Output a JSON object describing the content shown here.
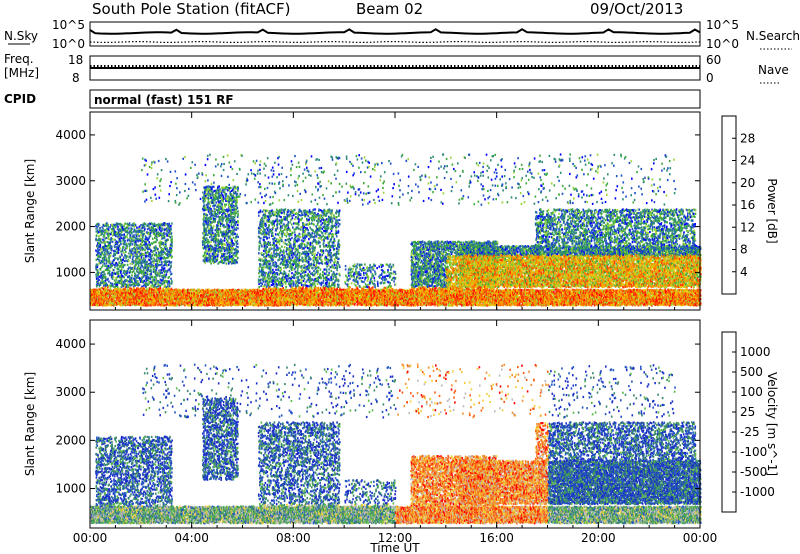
{
  "header": {
    "station": "South Pole Station (fitACF)",
    "beam": "Beam 02",
    "date": "09/Oct/2013"
  },
  "noise_panel": {
    "left_label": "N.Sky",
    "left_ticks": [
      "10^5",
      "10^0"
    ],
    "right_label": "N.Search",
    "right_ticks": [
      "10^5",
      "10^0"
    ]
  },
  "freq_panel": {
    "left_label_1": "Freq.",
    "left_label_2": "[MHz]",
    "left_ticks": [
      "18",
      "8"
    ],
    "right_label": "Nave",
    "right_ticks": [
      "60",
      "0"
    ]
  },
  "cpid_panel": {
    "label": "CPID",
    "mode_text": "normal (fast) 151 RF"
  },
  "chart_data": [
    {
      "type": "heatmap",
      "name": "power",
      "xlabel": "Time UT",
      "ylabel": "Slant Range [km]",
      "xlim": [
        0,
        24
      ],
      "ylim": [
        180,
        4500
      ],
      "yticks": [
        1000,
        2000,
        3000,
        4000
      ],
      "xtick_labels": [
        "00:00",
        "04:00",
        "08:00",
        "12:00",
        "16:00",
        "20:00",
        "00:00"
      ],
      "colorbar": {
        "label": "Power [dB]",
        "range": [
          0,
          32
        ],
        "ticks": [
          "4",
          "8",
          "12",
          "16",
          "20",
          "24",
          "28"
        ],
        "colors": [
          "#0000ff",
          "#1e4fc8",
          "#2e8a7a",
          "#3caa3c",
          "#9bd43a",
          "#f0c000",
          "#ff8a00",
          "#ff3a00",
          "#ff0000"
        ]
      }
    },
    {
      "type": "heatmap",
      "name": "velocity",
      "xlabel": "Time UT",
      "ylabel": "Slant Range [km]",
      "xlim": [
        0,
        24
      ],
      "ylim": [
        180,
        4500
      ],
      "yticks": [
        1000,
        2000,
        3000,
        4000
      ],
      "xtick_labels": [
        "00:00",
        "04:00",
        "08:00",
        "12:00",
        "16:00",
        "20:00",
        "00:00"
      ],
      "colorbar": {
        "label": "Velocity [m s^-1]",
        "ticks": [
          "1000",
          "500",
          "100",
          "25",
          "-25",
          "-100",
          "-500",
          "-1000"
        ],
        "colors": [
          "#1a2ec8",
          "#2458c0",
          "#3a8a6a",
          "#5ab84a",
          "#bcbcbc",
          "#f5d040",
          "#f09030",
          "#ff5a10",
          "#ff0000"
        ]
      }
    }
  ],
  "x_axis_title": "Time UT"
}
